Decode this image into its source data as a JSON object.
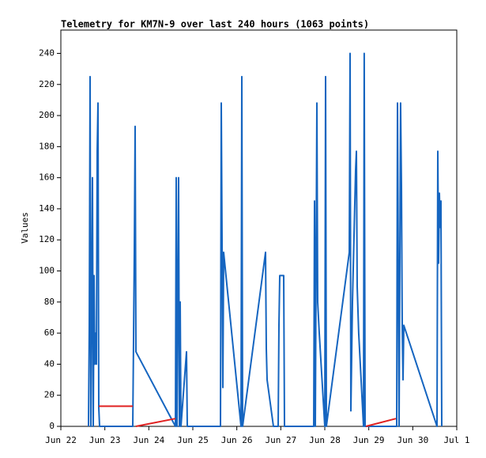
{
  "chart_data": {
    "type": "line",
    "title": "Telemetry for KM7N-9 over last 240 hours (1063 points)",
    "y_label": "Values",
    "x": [
      "Jun 22 15:05",
      "Jun 22 15:31",
      "Jun 22 15:57",
      "Jun 22 16:23",
      "Jun 22 17:15",
      "Jun 22 17:41",
      "Jun 22 18:06",
      "Jun 22 18:32",
      "Jun 22 18:58",
      "Jun 22 19:24",
      "Jun 22 19:50",
      "Jun 22 20:16",
      "Jun 22 20:42",
      "Jun 22 21:07",
      "Jun 23 15:14",
      "Jun 23 16:05",
      "Jun 23 16:31",
      "Jun 23 16:57",
      "Jun 24 14:31",
      "Jun 24 14:57",
      "Jun 24 15:22",
      "Jun 24 16:14",
      "Jun 24 16:40",
      "Jun 24 17:06",
      "Jun 24 17:32",
      "Jun 24 20:33",
      "Jun 24 20:59",
      "Jun 25 15:05",
      "Jun 25 15:31",
      "Jun 25 15:57",
      "Jun 25 16:23",
      "Jun 25 16:49",
      "Jun 26 02:17",
      "Jun 26 02:43",
      "Jun 26 03:09",
      "Jun 26 15:40",
      "Jun 26 16:05",
      "Jun 26 16:31",
      "Jun 26 19:58",
      "Jun 26 22:33",
      "Jun 26 22:59",
      "Jun 26 23:25",
      "Jun 27 01:34",
      "Jun 27 02:00",
      "Jun 27 17:57",
      "Jun 27 18:23",
      "Jun 27 18:49",
      "Jun 27 19:41",
      "Jun 27 20:07",
      "Jun 27 20:58",
      "Jun 27 23:59",
      "Jun 28 00:25",
      "Jun 28 00:51",
      "Jun 28 13:21",
      "Jun 28 13:47",
      "Jun 28 14:13",
      "Jun 28 15:05",
      "Jun 28 16:48",
      "Jun 28 17:14",
      "Jun 28 17:40",
      "Jun 28 18:31",
      "Jun 28 21:07",
      "Jun 28 21:32",
      "Jun 28 21:58",
      "Jun 28 22:25",
      "Jun 29 14:47",
      "Jun 29 15:13",
      "Jun 29 15:39",
      "Jun 29 16:31",
      "Jun 29 17:22",
      "Jun 29 17:49",
      "Jun 29 18:14",
      "Jun 29 18:40",
      "Jun 29 19:06",
      "Jun 30 13:12",
      "Jun 30 13:38",
      "Jun 30 14:04",
      "Jun 30 14:30",
      "Jun 30 14:56",
      "Jun 30 15:22",
      "Jun 30 15:48"
    ],
    "series": [
      {
        "color": "#1565c0",
        "values": [
          0,
          65,
          225,
          0,
          160,
          0,
          97,
          40,
          60,
          40,
          177,
          208,
          12,
          0,
          0,
          113,
          193,
          48,
          0,
          160,
          0,
          160,
          0,
          80,
          0,
          48,
          0,
          0,
          208,
          120,
          25,
          112,
          0,
          225,
          0,
          112,
          50,
          30,
          0,
          0,
          65,
          97,
          97,
          0,
          0,
          145,
          0,
          208,
          80,
          60,
          0,
          225,
          0,
          112,
          240,
          10,
          80,
          165,
          177,
          90,
          60,
          0,
          240,
          0,
          0,
          0,
          0,
          208,
          0,
          208,
          155,
          65,
          30,
          65,
          0,
          177,
          105,
          150,
          128,
          145,
          0
        ]
      },
      {
        "color": "#e02020",
        "values": [
          null,
          null,
          null,
          null,
          null,
          null,
          null,
          null,
          null,
          null,
          null,
          null,
          13,
          13,
          13,
          null,
          null,
          0,
          5,
          null,
          null,
          null,
          null,
          null,
          null,
          null,
          null,
          null,
          null,
          null,
          null,
          null,
          null,
          null,
          null,
          null,
          null,
          null,
          null,
          null,
          null,
          null,
          null,
          null,
          null,
          null,
          null,
          null,
          null,
          null,
          null,
          null,
          null,
          null,
          null,
          null,
          null,
          null,
          null,
          null,
          null,
          null,
          null,
          null,
          0,
          5,
          null,
          null,
          null,
          null,
          null,
          null,
          null,
          null,
          null,
          null,
          null,
          null,
          null,
          null,
          null
        ]
      }
    ],
    "xlim": [
      "Jun 22",
      "Jul 1"
    ],
    "xticks": [
      "Jun 22",
      "Jun 23",
      "Jun 24",
      "Jun 25",
      "Jun 26",
      "Jun 27",
      "Jun 28",
      "Jun 29",
      "Jun 30",
      "Jul 1"
    ],
    "ylim": [
      0,
      255
    ],
    "yticks": [
      0,
      20,
      40,
      60,
      80,
      100,
      120,
      140,
      160,
      180,
      200,
      220,
      240
    ]
  }
}
